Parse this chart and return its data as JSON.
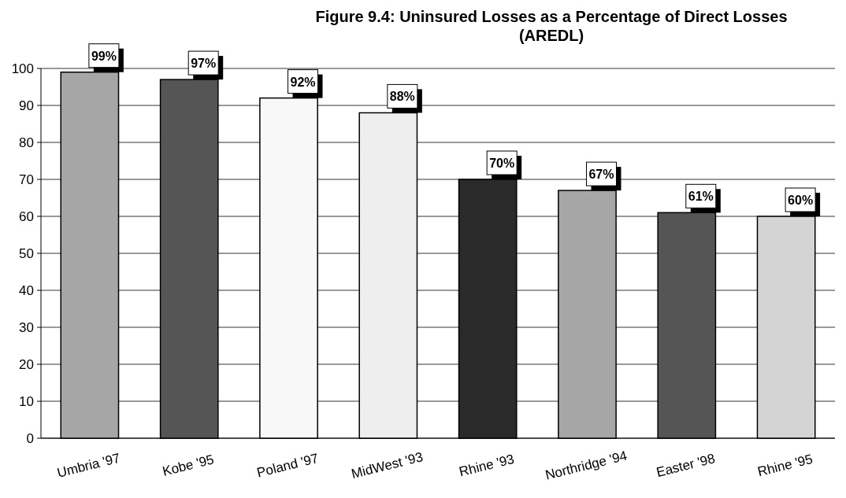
{
  "chart_data": {
    "type": "bar",
    "title": "Figure 9.4: Uninsured Losses as a Percentage of Direct Losses (AREDL)",
    "categories": [
      "Umbria '97",
      "Kobe '95",
      "Poland '97",
      "MidWest '93",
      "Rhine '93",
      "Northridge '94",
      "Easter '98",
      "Rhine '95"
    ],
    "values": [
      99,
      97,
      92,
      88,
      70,
      67,
      61,
      60
    ],
    "colors": [
      "#a6a6a6",
      "#555555",
      "#f8f8f8",
      "#eeeeee",
      "#2a2a2a",
      "#a6a6a6",
      "#555555",
      "#d4d4d4"
    ],
    "value_labels": [
      "99%",
      "97%",
      "92%",
      "88%",
      "70%",
      "67%",
      "61%",
      "60%"
    ],
    "ylim": [
      0,
      100
    ],
    "yticks": [
      0,
      10,
      20,
      30,
      40,
      50,
      60,
      70,
      80,
      90,
      100
    ],
    "grid": "y"
  }
}
